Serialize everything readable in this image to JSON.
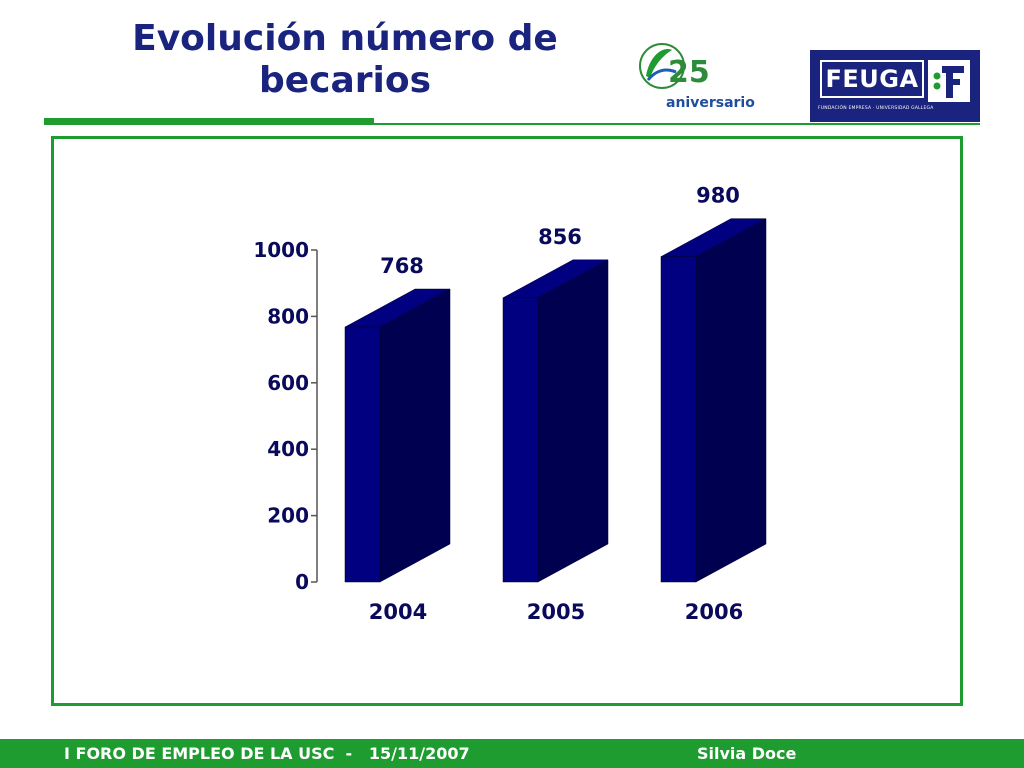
{
  "header": {
    "title": "Evolución número de becarios",
    "logo_anniversary": {
      "number": "25",
      "text": "aniversario"
    },
    "logo_feuga": {
      "name": "FEUGA",
      "tagline": "FUNDACIÓN EMPRESA · UNIVERSIDAD GALLEGA"
    }
  },
  "colors": {
    "accent_green": "#1f9c2f",
    "title_navy": "#1a237e",
    "bar_front": "#000080",
    "bar_side": "#000050",
    "label_navy": "#0a0a5c"
  },
  "chart_data": {
    "type": "bar",
    "style": "3d",
    "categories": [
      "2004",
      "2005",
      "2006"
    ],
    "values": [
      768,
      856,
      980
    ],
    "data_labels": [
      "768",
      "856",
      "980"
    ],
    "ylim": [
      0,
      1000
    ],
    "yticks": [
      0,
      200,
      400,
      600,
      800,
      1000
    ],
    "legend": "none",
    "grid": false
  },
  "footer": {
    "left": "I FORO DE EMPLEO DE LA USC  -   15/11/2007",
    "right": "Silvia Doce"
  }
}
